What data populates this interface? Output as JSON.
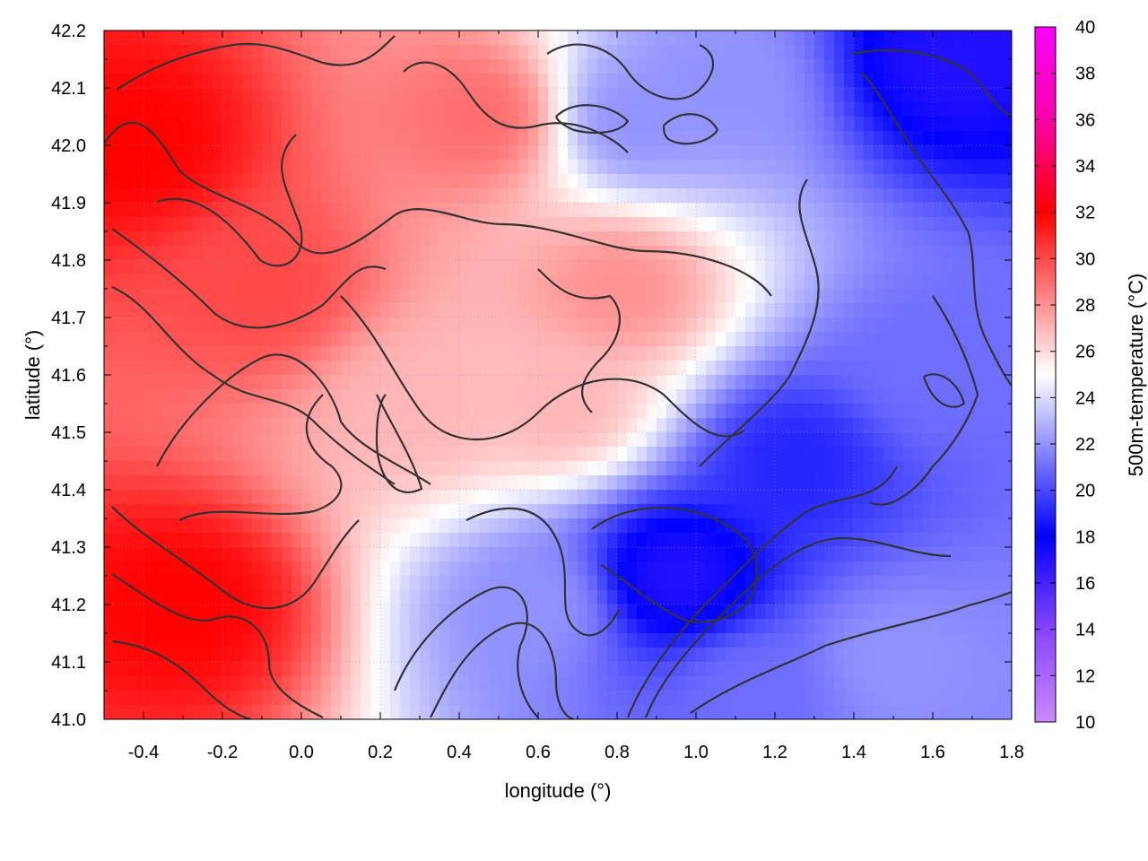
{
  "chart_data": {
    "type": "heatmap",
    "title": "",
    "xlabel": "longitude (°)",
    "ylabel": "latitude (°)",
    "colorbar_label": "500m-temperature (°C)",
    "xlim": [
      -0.5,
      1.8
    ],
    "ylim": [
      41.0,
      42.2
    ],
    "x_ticks": [
      -0.4,
      -0.2,
      0.0,
      0.2,
      0.4,
      0.6,
      0.8,
      1.0,
      1.2,
      1.4,
      1.6,
      1.8
    ],
    "x_tick_labels": [
      "-0.4",
      "-0.2",
      "0.0",
      "0.2",
      "0.4",
      "0.6",
      "0.8",
      "1.0",
      "1.2",
      "1.4",
      "1.6",
      "1.8"
    ],
    "y_ticks": [
      41.0,
      41.1,
      41.2,
      41.3,
      41.4,
      41.5,
      41.6,
      41.7,
      41.8,
      41.9,
      42.0,
      42.1,
      42.2
    ],
    "y_tick_labels": [
      "41.0",
      "41.1",
      "41.2",
      "41.3",
      "41.4",
      "41.5",
      "41.6",
      "41.7",
      "41.8",
      "41.9",
      "42.0",
      "42.1",
      "42.2"
    ],
    "colorbar_range": [
      10,
      40
    ],
    "colorbar_ticks": [
      10,
      12,
      14,
      16,
      18,
      20,
      22,
      24,
      26,
      28,
      30,
      32,
      34,
      36,
      38,
      40
    ],
    "colorbar_tick_labels": [
      "10",
      "12",
      "14",
      "16",
      "18",
      "20",
      "22",
      "24",
      "26",
      "28",
      "30",
      "32",
      "34",
      "36",
      "38",
      "40"
    ],
    "colormap": [
      {
        "value": 10,
        "color": "#cc88ff"
      },
      {
        "value": 14,
        "color": "#8844ff"
      },
      {
        "value": 18,
        "color": "#0000ff"
      },
      {
        "value": 25,
        "color": "#ffffff"
      },
      {
        "value": 32,
        "color": "#ff0000"
      },
      {
        "value": 36,
        "color": "#ff00aa"
      },
      {
        "value": 40,
        "color": "#ff00ff"
      }
    ],
    "grid": true,
    "contours": "black elevation contour lines overlaid",
    "temperature_centers": [
      {
        "lon": -0.42,
        "lat": 42.0,
        "temp": 32
      },
      {
        "lon": -0.3,
        "lat": 41.2,
        "temp": 32
      },
      {
        "lon": -0.1,
        "lat": 41.75,
        "temp": 30
      },
      {
        "lon": 0.3,
        "lat": 41.55,
        "temp": 27
      },
      {
        "lon": 0.8,
        "lat": 41.75,
        "temp": 28
      },
      {
        "lon": 0.45,
        "lat": 42.05,
        "temp": 29
      },
      {
        "lon": 0.65,
        "lat": 41.55,
        "temp": 27
      },
      {
        "lon": 0.85,
        "lat": 42.05,
        "temp": 22
      },
      {
        "lon": 1.05,
        "lat": 42.1,
        "temp": 22
      },
      {
        "lon": 1.65,
        "lat": 42.15,
        "temp": 17
      },
      {
        "lon": 1.25,
        "lat": 41.45,
        "temp": 19
      },
      {
        "lon": 0.95,
        "lat": 41.25,
        "temp": 17
      },
      {
        "lon": 0.6,
        "lat": 41.2,
        "temp": 22
      },
      {
        "lon": 1.6,
        "lat": 41.6,
        "temp": 21
      },
      {
        "lon": 1.5,
        "lat": 41.1,
        "temp": 22
      },
      {
        "lon": 1.15,
        "lat": 41.05,
        "temp": 21
      }
    ]
  }
}
